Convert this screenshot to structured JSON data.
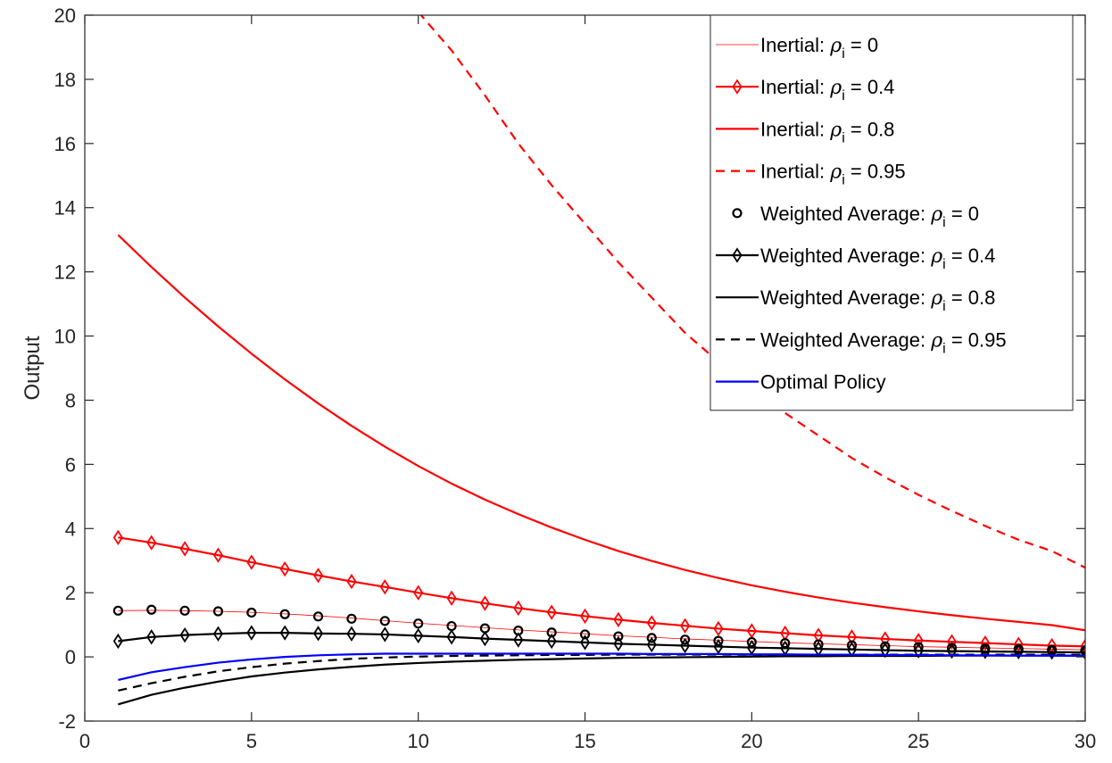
{
  "chart_data": {
    "type": "line",
    "title": "",
    "xlabel": "",
    "ylabel": "Output",
    "xlim": [
      0,
      30
    ],
    "ylim": [
      -2,
      20
    ],
    "xticks": [
      0,
      5,
      10,
      15,
      20,
      25,
      30
    ],
    "yticks": [
      -2,
      0,
      2,
      4,
      6,
      8,
      10,
      12,
      14,
      16,
      18,
      20
    ],
    "xtick_labels": [
      "0",
      "5",
      "10",
      "15",
      "20",
      "25",
      "30"
    ],
    "ytick_labels": [
      "-2",
      "0",
      "2",
      "4",
      "6",
      "8",
      "10",
      "12",
      "14",
      "16",
      "18",
      "20"
    ],
    "grid": false,
    "legend_position": "top-right",
    "x": [
      1,
      2,
      3,
      4,
      5,
      6,
      7,
      8,
      9,
      10,
      11,
      12,
      13,
      14,
      15,
      16,
      17,
      18,
      19,
      20,
      21,
      22,
      23,
      24,
      25,
      26,
      27,
      28,
      29,
      30
    ],
    "series": [
      {
        "name_prefix": "Inertial: ",
        "name_rho": "ρ",
        "name_sub": "i",
        "name_suffix": " = 0",
        "color": "#ff0000",
        "width": 0.8,
        "dash": "",
        "marker": "none",
        "values": [
          1.44,
          1.45,
          1.44,
          1.42,
          1.39,
          1.34,
          1.28,
          1.21,
          1.13,
          1.05,
          0.98,
          0.91,
          0.84,
          0.78,
          0.72,
          0.66,
          0.61,
          0.56,
          0.52,
          0.48,
          0.44,
          0.41,
          0.38,
          0.35,
          0.32,
          0.3,
          0.28,
          0.26,
          0.24,
          0.22
        ]
      },
      {
        "name_prefix": "Inertial: ",
        "name_rho": "ρ",
        "name_sub": "i",
        "name_suffix": " = 0.4",
        "color": "#ff0000",
        "width": 2.2,
        "dash": "",
        "marker": "diamond",
        "values": [
          3.72,
          3.56,
          3.37,
          3.17,
          2.95,
          2.74,
          2.54,
          2.35,
          2.18,
          2.0,
          1.83,
          1.67,
          1.52,
          1.39,
          1.27,
          1.16,
          1.06,
          0.97,
          0.88,
          0.81,
          0.74,
          0.67,
          0.62,
          0.56,
          0.51,
          0.47,
          0.43,
          0.39,
          0.35,
          0.33
        ]
      },
      {
        "name_prefix": "Inertial: ",
        "name_rho": "ρ",
        "name_sub": "i",
        "name_suffix": " = 0.8",
        "color": "#ff0000",
        "width": 2.2,
        "dash": "",
        "marker": "none",
        "values": [
          13.15,
          12.15,
          11.2,
          10.3,
          9.45,
          8.65,
          7.9,
          7.2,
          6.55,
          5.95,
          5.4,
          4.9,
          4.45,
          4.03,
          3.65,
          3.3,
          2.99,
          2.71,
          2.46,
          2.23,
          2.03,
          1.85,
          1.69,
          1.55,
          1.42,
          1.3,
          1.19,
          1.09,
          0.99,
          0.83
        ]
      },
      {
        "name_prefix": "Inertial: ",
        "name_rho": "ρ",
        "name_sub": "i",
        "name_suffix": " = 0.95",
        "color": "#ff0000",
        "width": 2.2,
        "dash": "10,7",
        "marker": "none",
        "values": [
          null,
          null,
          null,
          null,
          null,
          null,
          null,
          null,
          null,
          20.1,
          18.9,
          17.5,
          16.0,
          14.7,
          13.5,
          12.3,
          11.2,
          10.1,
          9.2,
          8.4,
          7.6,
          6.9,
          6.2,
          5.6,
          5.05,
          4.55,
          4.08,
          3.65,
          3.3,
          2.78
        ]
      },
      {
        "name_prefix": "Weighted Average: ",
        "name_rho": "ρ",
        "name_sub": "i",
        "name_suffix": " = 0",
        "color": "#000000",
        "width": 0,
        "dash": "",
        "marker": "circle",
        "values": [
          1.44,
          1.47,
          1.44,
          1.42,
          1.38,
          1.33,
          1.26,
          1.19,
          1.12,
          1.04,
          0.96,
          0.89,
          0.82,
          0.76,
          0.7,
          0.64,
          0.59,
          0.54,
          0.5,
          0.46,
          0.43,
          0.39,
          0.36,
          0.33,
          0.31,
          0.28,
          0.26,
          0.24,
          0.22,
          0.2
        ]
      },
      {
        "name_prefix": "Weighted Average: ",
        "name_rho": "ρ",
        "name_sub": "i",
        "name_suffix": " = 0.4",
        "color": "#000000",
        "width": 2.2,
        "dash": "",
        "marker": "diamond",
        "values": [
          0.49,
          0.62,
          0.68,
          0.72,
          0.75,
          0.75,
          0.73,
          0.72,
          0.7,
          0.66,
          0.62,
          0.57,
          0.53,
          0.49,
          0.45,
          0.41,
          0.38,
          0.35,
          0.32,
          0.29,
          0.27,
          0.25,
          0.23,
          0.21,
          0.19,
          0.18,
          0.17,
          0.16,
          0.15,
          0.14
        ]
      },
      {
        "name_prefix": "Weighted Average: ",
        "name_rho": "ρ",
        "name_sub": "i",
        "name_suffix": " = 0.8",
        "color": "#000000",
        "width": 2.2,
        "dash": "",
        "marker": "none",
        "values": [
          -1.48,
          -1.18,
          -0.96,
          -0.77,
          -0.61,
          -0.49,
          -0.39,
          -0.31,
          -0.24,
          -0.19,
          -0.15,
          -0.12,
          -0.09,
          -0.07,
          -0.05,
          -0.03,
          -0.02,
          -0.01,
          0.0,
          0.01,
          0.02,
          0.02,
          0.03,
          0.03,
          0.03,
          0.04,
          0.04,
          0.04,
          0.04,
          0.04
        ]
      },
      {
        "name_prefix": "Weighted Average: ",
        "name_rho": "ρ",
        "name_sub": "i",
        "name_suffix": " = 0.95",
        "color": "#000000",
        "width": 2.2,
        "dash": "10,7",
        "marker": "none",
        "values": [
          -1.05,
          -0.82,
          -0.62,
          -0.45,
          -0.32,
          -0.21,
          -0.13,
          -0.06,
          -0.02,
          0.01,
          0.03,
          0.04,
          0.05,
          0.06,
          0.06,
          0.07,
          0.07,
          0.07,
          0.07,
          0.07,
          0.07,
          0.07,
          0.07,
          0.07,
          0.07,
          0.07,
          0.07,
          0.07,
          0.07,
          0.07
        ]
      },
      {
        "name_prefix": "Optimal Policy",
        "name_rho": "",
        "name_sub": "",
        "name_suffix": "",
        "color": "#0000ff",
        "width": 2.2,
        "dash": "",
        "marker": "none",
        "values": [
          -0.72,
          -0.48,
          -0.32,
          -0.18,
          -0.08,
          0.0,
          0.05,
          0.08,
          0.1,
          0.1,
          0.1,
          0.1,
          0.1,
          0.1,
          0.1,
          0.1,
          0.09,
          0.09,
          0.09,
          0.08,
          0.08,
          0.07,
          0.07,
          0.06,
          0.06,
          0.05,
          0.05,
          0.04,
          0.04,
          0.03
        ]
      }
    ]
  }
}
